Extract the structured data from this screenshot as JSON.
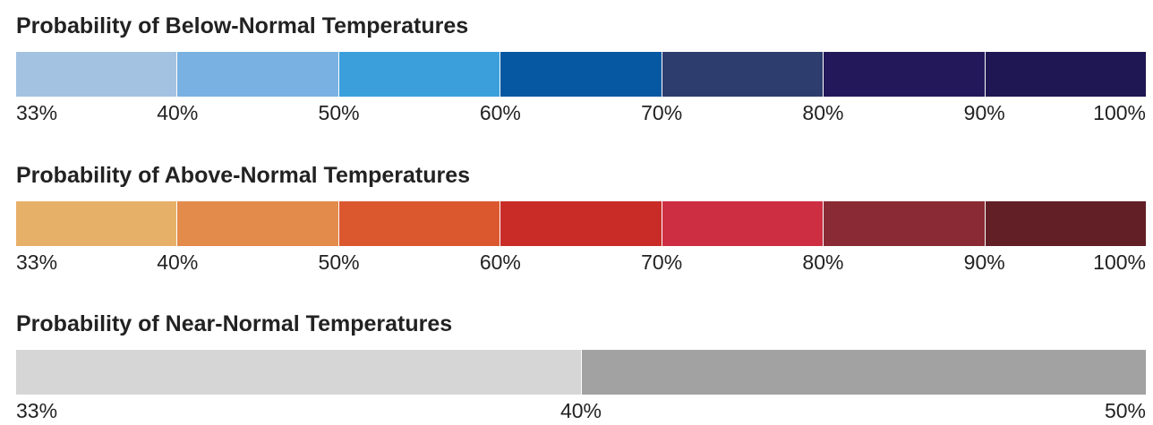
{
  "legends": [
    {
      "title": "Probability of Below-Normal Temperatures",
      "colors": [
        "#a3c2e2",
        "#79b2e2",
        "#3b9fdc",
        "#0758a3",
        "#2d3d6e",
        "#23195a",
        "#1f1654"
      ],
      "ticks": [
        "33%",
        "40%",
        "50%",
        "60%",
        "70%",
        "80%",
        "90%",
        "100%"
      ]
    },
    {
      "title": "Probability of Above-Normal Temperatures",
      "colors": [
        "#e7b069",
        "#e38b4b",
        "#db582f",
        "#c92c27",
        "#cd2e42",
        "#8a2a34",
        "#621f26"
      ],
      "ticks": [
        "33%",
        "40%",
        "50%",
        "60%",
        "70%",
        "80%",
        "90%",
        "100%"
      ]
    },
    {
      "title": "Probability of Near-Normal Temperatures",
      "colors": [
        "#d6d6d6",
        "#a2a2a2"
      ],
      "ticks": [
        "33%",
        "40%",
        "50%"
      ]
    }
  ]
}
